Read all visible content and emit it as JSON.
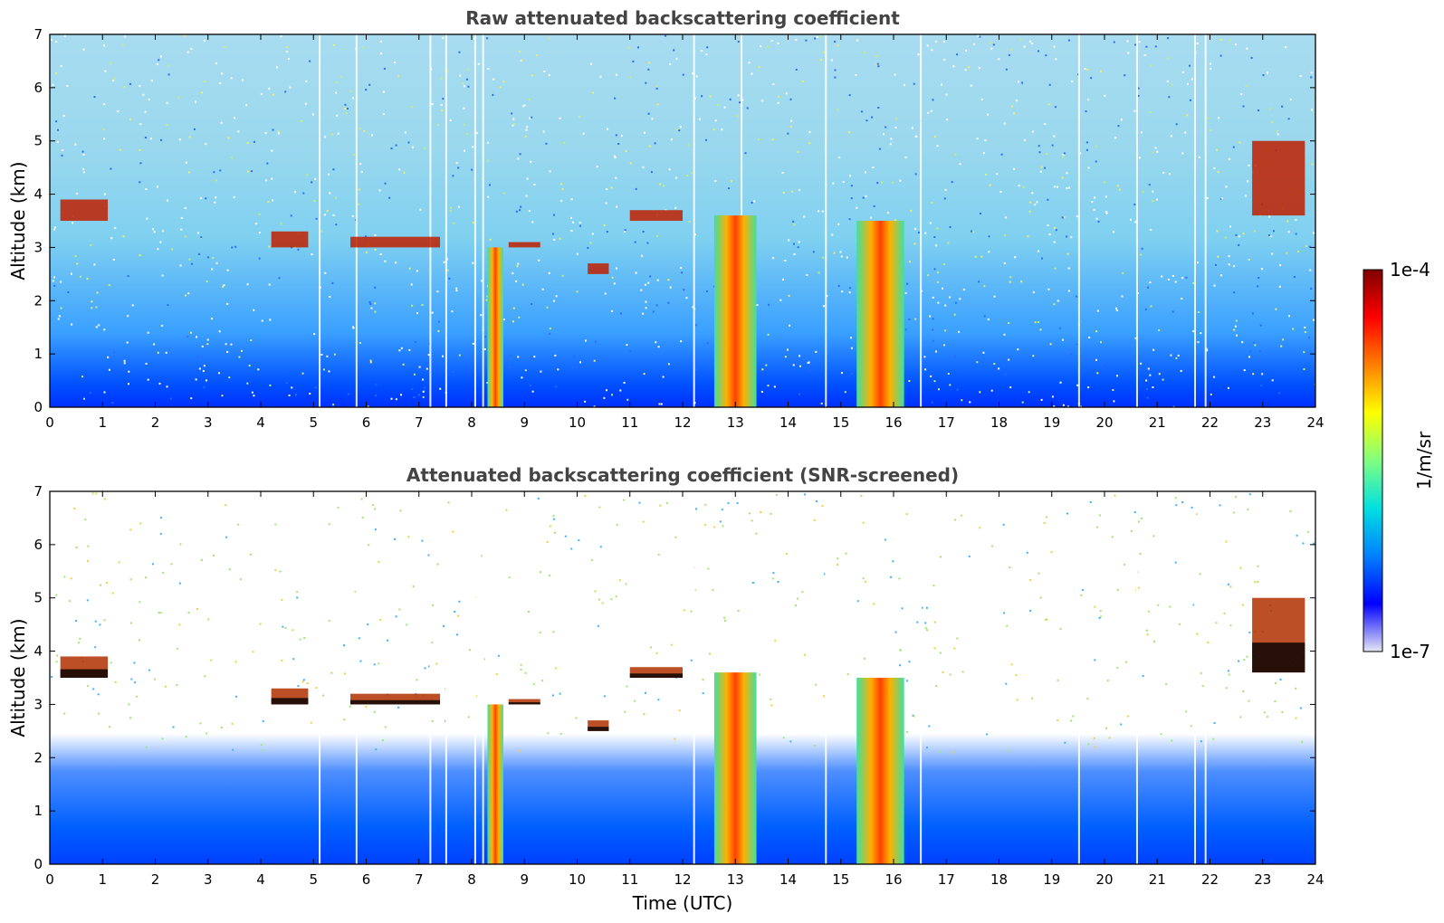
{
  "chart_data": [
    {
      "type": "heatmap",
      "title": "Raw attenuated backscattering coefficient",
      "xlabel": "",
      "ylabel": "Altitude (km)",
      "xlim": [
        0,
        24
      ],
      "ylim": [
        0,
        7
      ],
      "x_ticks": [
        "0",
        "1",
        "2",
        "3",
        "4",
        "5",
        "6",
        "7",
        "8",
        "9",
        "10",
        "11",
        "12",
        "13",
        "14",
        "15",
        "16",
        "17",
        "18",
        "19",
        "20",
        "21",
        "22",
        "23",
        "24"
      ],
      "y_ticks": [
        "0",
        "1",
        "2",
        "3",
        "4",
        "5",
        "6",
        "7"
      ],
      "features": [
        {
          "kind": "cloud_layer",
          "x": [
            0.2,
            1.1
          ],
          "y": [
            3.5,
            3.9
          ]
        },
        {
          "kind": "cloud_layer",
          "x": [
            4.2,
            4.9
          ],
          "y": [
            3.0,
            3.3
          ]
        },
        {
          "kind": "cloud_layer",
          "x": [
            5.7,
            7.4
          ],
          "y": [
            3.0,
            3.2
          ]
        },
        {
          "kind": "cloud_layer",
          "x": [
            8.7,
            9.3
          ],
          "y": [
            3.0,
            3.1
          ]
        },
        {
          "kind": "cloud_layer",
          "x": [
            10.2,
            10.6
          ],
          "y": [
            2.5,
            2.7
          ]
        },
        {
          "kind": "cloud_layer",
          "x": [
            11.0,
            12.0
          ],
          "y": [
            3.5,
            3.7
          ]
        },
        {
          "kind": "precipitation",
          "x": [
            8.3,
            8.6
          ],
          "y": [
            0,
            3.0
          ]
        },
        {
          "kind": "precipitation",
          "x": [
            12.6,
            13.4
          ],
          "y": [
            0,
            3.6
          ]
        },
        {
          "kind": "precipitation",
          "x": [
            15.3,
            16.2
          ],
          "y": [
            0,
            3.5
          ]
        },
        {
          "kind": "cloud_layer",
          "x": [
            22.8,
            23.8
          ],
          "y": [
            3.6,
            5.0
          ]
        }
      ]
    },
    {
      "type": "heatmap",
      "title": "Attenuated backscattering coefficient (SNR-screened)",
      "xlabel": "Time (UTC)",
      "ylabel": "Altitude (km)",
      "xlim": [
        0,
        24
      ],
      "ylim": [
        0,
        7
      ],
      "x_ticks": [
        "0",
        "1",
        "2",
        "3",
        "4",
        "5",
        "6",
        "7",
        "8",
        "9",
        "10",
        "11",
        "12",
        "13",
        "14",
        "15",
        "16",
        "17",
        "18",
        "19",
        "20",
        "21",
        "22",
        "23",
        "24"
      ],
      "y_ticks": [
        "0",
        "1",
        "2",
        "3",
        "4",
        "5",
        "6",
        "7"
      ],
      "features": [
        {
          "kind": "cloud_layer",
          "x": [
            0.2,
            1.1
          ],
          "y": [
            3.5,
            3.9
          ]
        },
        {
          "kind": "cloud_layer",
          "x": [
            4.2,
            4.9
          ],
          "y": [
            3.0,
            3.3
          ]
        },
        {
          "kind": "cloud_layer",
          "x": [
            5.7,
            7.4
          ],
          "y": [
            3.0,
            3.2
          ]
        },
        {
          "kind": "cloud_layer",
          "x": [
            8.7,
            9.3
          ],
          "y": [
            3.0,
            3.1
          ]
        },
        {
          "kind": "cloud_layer",
          "x": [
            10.2,
            10.6
          ],
          "y": [
            2.5,
            2.7
          ]
        },
        {
          "kind": "cloud_layer",
          "x": [
            11.0,
            12.0
          ],
          "y": [
            3.5,
            3.7
          ]
        },
        {
          "kind": "precipitation",
          "x": [
            8.3,
            8.6
          ],
          "y": [
            0,
            3.0
          ]
        },
        {
          "kind": "precipitation",
          "x": [
            12.6,
            13.4
          ],
          "y": [
            0,
            3.6
          ]
        },
        {
          "kind": "precipitation",
          "x": [
            15.3,
            16.2
          ],
          "y": [
            0,
            3.5
          ]
        },
        {
          "kind": "cloud_layer",
          "x": [
            22.8,
            23.8
          ],
          "y": [
            3.6,
            5.0
          ]
        }
      ]
    }
  ],
  "colorbar": {
    "label": "1/m/sr",
    "max_label": "1e-4",
    "min_label": "1e-7",
    "colormap": [
      "#e6e6f5",
      "#0000ff",
      "#0080ff",
      "#00e0e0",
      "#80ff80",
      "#ffff00",
      "#ff8000",
      "#ff0000",
      "#800000"
    ]
  }
}
